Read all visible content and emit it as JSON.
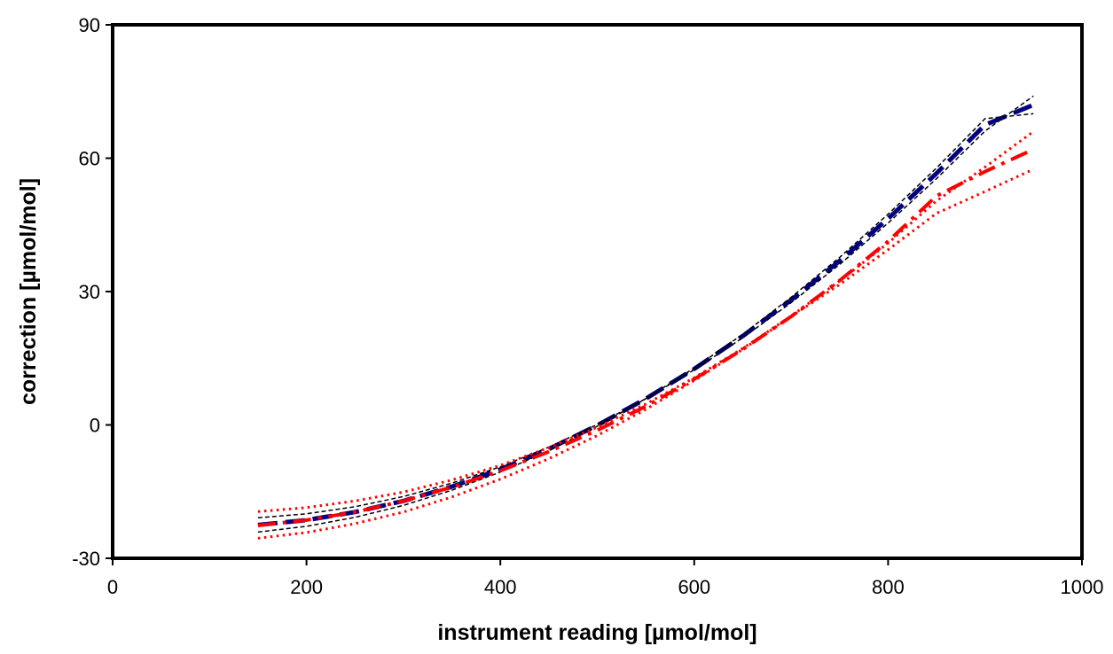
{
  "chart_data": {
    "type": "line",
    "title": "",
    "xlabel": "instrument reading [µmol/mol]",
    "ylabel": "correction [µmol/mol]",
    "xlim": [
      0,
      1000
    ],
    "ylim": [
      -30,
      90
    ],
    "xticks": [
      0,
      200,
      400,
      600,
      800,
      1000
    ],
    "yticks": [
      -30,
      0,
      30,
      60,
      90
    ],
    "xtick_labels": [
      "0",
      "200",
      "400",
      "600",
      "800",
      "1000"
    ],
    "ytick_labels": [
      "-30",
      "0",
      "30",
      "60",
      "90"
    ],
    "grid": false,
    "legend": "none",
    "series": [
      {
        "style": "dashed",
        "color": "#000080",
        "width": "heavy",
        "x": [
          150,
          200,
          250,
          300,
          350,
          400,
          450,
          500,
          550,
          600,
          650,
          700,
          750,
          800,
          850,
          900,
          950
        ],
        "y": [
          -22.5,
          -21.4,
          -19.6,
          -17.1,
          -13.9,
          -10,
          -5.4,
          -0.1,
          5.9,
          12.6,
          20,
          28.1,
          36.9,
          46.4,
          56.6,
          67.5,
          72
        ]
      },
      {
        "style": "dashed",
        "color": "#000000",
        "width": "thin",
        "x": [
          150,
          200,
          250,
          300,
          350,
          400,
          450,
          500,
          550,
          600,
          650,
          700,
          750,
          800,
          850,
          900,
          950
        ],
        "y": [
          -20.9,
          -20,
          -18.4,
          -16.1,
          -13.1,
          -9.4,
          -5,
          0.1,
          5.9,
          12.4,
          19.6,
          27.5,
          36.1,
          45.4,
          55.4,
          66.1,
          74
        ]
      },
      {
        "style": "dashed",
        "color": "#000000",
        "width": "thin",
        "x": [
          150,
          200,
          250,
          300,
          350,
          400,
          450,
          500,
          550,
          600,
          650,
          700,
          750,
          800,
          850,
          900,
          950
        ],
        "y": [
          -24.1,
          -22.8,
          -20.8,
          -18.1,
          -14.7,
          -10.6,
          -5.8,
          -0.3,
          5.9,
          12.8,
          20.4,
          28.7,
          37.7,
          47.4,
          57.8,
          68.9,
          70
        ]
      },
      {
        "style": "dash-dot",
        "color": "#ff0000",
        "width": "heavy",
        "x": [
          150,
          200,
          250,
          300,
          350,
          400,
          450,
          500,
          550,
          600,
          650,
          700,
          750,
          800,
          850,
          900,
          950
        ],
        "y": [
          -22.6,
          -21.4,
          -19.6,
          -17.1,
          -14,
          -10.3,
          -6,
          -1.2,
          4.2,
          10.3,
          17,
          24.4,
          32.5,
          41.3,
          51.5,
          57,
          62
        ]
      },
      {
        "style": "dotted",
        "color": "#ff0000",
        "width": "medium",
        "x": [
          150,
          200,
          250,
          300,
          350,
          400,
          450,
          500,
          550,
          600,
          650,
          700,
          750,
          800,
          850,
          900,
          950
        ],
        "y": [
          -19.5,
          -18.6,
          -17.1,
          -15.1,
          -12.4,
          -9.1,
          -5.1,
          -0.5,
          4.7,
          10.6,
          17.2,
          24.5,
          32.4,
          40.9,
          50.4,
          58,
          66
        ]
      },
      {
        "style": "dotted",
        "color": "#ff0000",
        "width": "medium",
        "x": [
          150,
          200,
          250,
          300,
          350,
          400,
          450,
          500,
          550,
          600,
          650,
          700,
          750,
          800,
          850,
          900,
          950
        ],
        "y": [
          -25.5,
          -24.2,
          -22.2,
          -19.6,
          -16.2,
          -12.2,
          -7.6,
          -2.4,
          3.5,
          10,
          17,
          24.4,
          31.6,
          39.4,
          47.6,
          52.5,
          57.5
        ]
      }
    ]
  }
}
